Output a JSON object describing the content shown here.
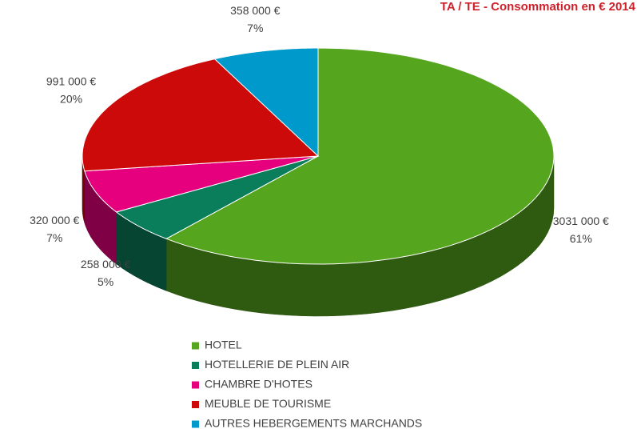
{
  "chart_data": {
    "type": "pie3d",
    "title": "TA / TE - Consommation en € 2014",
    "categories": [
      "HOTEL",
      "HOTELLERIE DE PLEIN AIR",
      "CHAMBRE D'HOTES",
      "MEUBLE DE TOURISME",
      "AUTRES HEBERGEMENTS MARCHANDS"
    ],
    "values": [
      3031000,
      258000,
      320000,
      991000,
      358000
    ],
    "value_labels": [
      "3031 000 €",
      "258 000 €",
      "320 000 €",
      "991 000 €",
      "358 000 €"
    ],
    "percents": [
      61,
      5,
      7,
      20,
      7
    ],
    "percent_labels": [
      "61%",
      "5%",
      "7%",
      "20%",
      "7%"
    ],
    "colors": [
      "#55a51e",
      "#0a7d5a",
      "#e6007e",
      "#cc0a0a",
      "#0099cc"
    ],
    "legend": "bottom"
  }
}
